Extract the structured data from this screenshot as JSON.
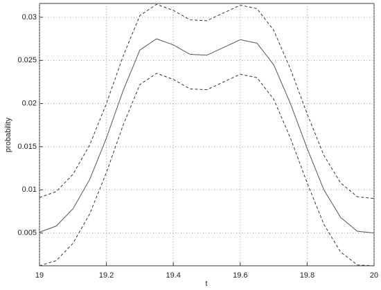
{
  "chart_data": {
    "type": "line",
    "x_label": "t",
    "y_label": "probability",
    "x": [
      19,
      19.05,
      19.1,
      19.15,
      19.2,
      19.25,
      19.3,
      19.35,
      19.4,
      19.45,
      19.5,
      19.55,
      19.6,
      19.65,
      19.7,
      19.75,
      19.8,
      19.85,
      19.9,
      19.95,
      20
    ],
    "series": [
      {
        "color": "#555555",
        "line_style": "solid",
        "values": [
          0.0051,
          0.0058,
          0.0078,
          0.0112,
          0.016,
          0.0215,
          0.0262,
          0.0275,
          0.0268,
          0.0257,
          0.0256,
          0.0265,
          0.0274,
          0.027,
          0.0245,
          0.02,
          0.0148,
          0.01,
          0.0068,
          0.0052,
          0.005
        ]
      },
      {
        "color": "#333333",
        "line_style": "dashed",
        "values": [
          0.0091,
          0.0098,
          0.0118,
          0.0152,
          0.02,
          0.0255,
          0.0302,
          0.0315,
          0.0308,
          0.0297,
          0.0296,
          0.0305,
          0.0314,
          0.031,
          0.0285,
          0.024,
          0.0188,
          0.014,
          0.0108,
          0.0092,
          0.009
        ]
      },
      {
        "color": "#333333",
        "line_style": "dashed",
        "values": [
          0.0012,
          0.0018,
          0.0038,
          0.0072,
          0.012,
          0.0175,
          0.0222,
          0.0235,
          0.0228,
          0.0217,
          0.0216,
          0.0225,
          0.0234,
          0.023,
          0.0205,
          0.016,
          0.0108,
          0.006,
          0.0028,
          0.0013,
          0.0012
        ]
      }
    ],
    "xlim": [
      19,
      20
    ],
    "xticks": [
      19,
      19.2,
      19.4,
      19.6,
      19.8,
      20
    ],
    "ylim": [
      0.0012,
      0.0316
    ],
    "yticks": [
      0.005,
      0.01,
      0.015,
      0.02,
      0.025,
      0.03
    ],
    "grid": true
  }
}
